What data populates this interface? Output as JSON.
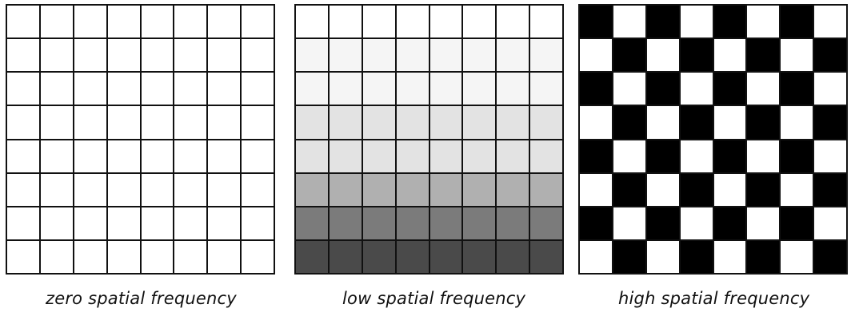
{
  "panels": [
    {
      "id": "zero",
      "caption": "zero spatial frequency",
      "grid_size": 8,
      "pattern": "uniform",
      "row_colors": [
        "#ffffff",
        "#ffffff",
        "#ffffff",
        "#ffffff",
        "#ffffff",
        "#ffffff",
        "#ffffff",
        "#ffffff"
      ]
    },
    {
      "id": "low",
      "caption": "low spatial frequency",
      "grid_size": 8,
      "pattern": "row_gradient",
      "row_colors": [
        "#ffffff",
        "#f5f5f5",
        "#f5f5f5",
        "#e3e3e3",
        "#e3e3e3",
        "#b0b0b0",
        "#7b7b7b",
        "#4a4a4a"
      ]
    },
    {
      "id": "high",
      "caption": "high spatial frequency",
      "grid_size": 8,
      "pattern": "checkerboard",
      "checker_colors": [
        "#000000",
        "#ffffff"
      ]
    }
  ]
}
